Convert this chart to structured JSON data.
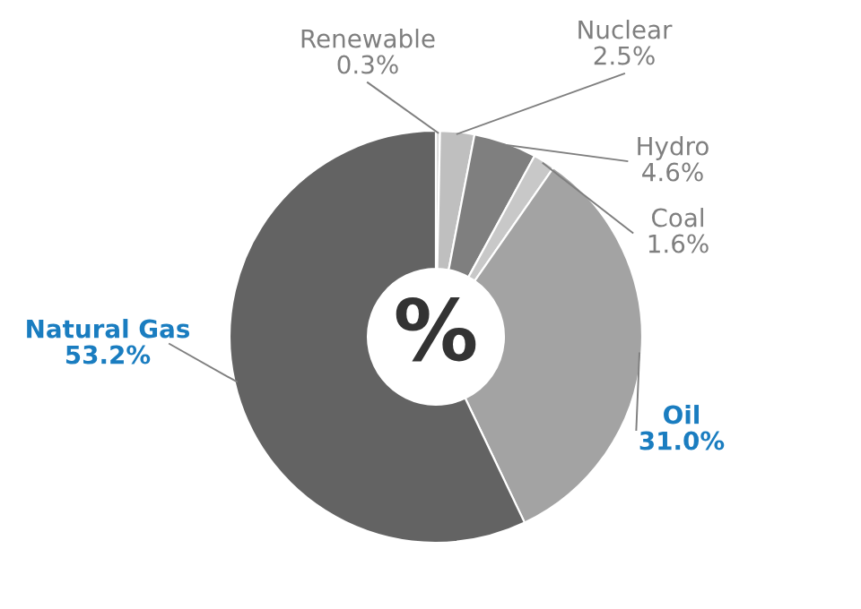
{
  "chart_data": {
    "type": "donut",
    "categories": [
      "Renewable",
      "Nuclear",
      "Hydro",
      "Coal",
      "Oil",
      "Natural Gas"
    ],
    "values": [
      0.3,
      2.5,
      4.6,
      1.6,
      31.0,
      53.2
    ],
    "colors": [
      "#d9d9d9",
      "#bfbfbf",
      "#7f7f7f",
      "#c8c8c8",
      "#a3a3a3",
      "#636363"
    ],
    "value_labels": [
      "0.3%",
      "2.5%",
      "4.6%",
      "1.6%",
      "31.0%",
      "53.2%"
    ],
    "annotations": [
      "%"
    ]
  }
}
